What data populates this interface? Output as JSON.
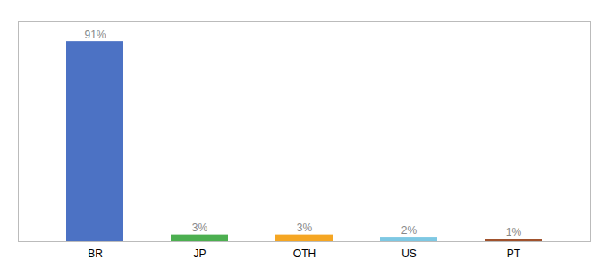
{
  "chart_data": {
    "type": "bar",
    "categories": [
      "BR",
      "JP",
      "OTH",
      "US",
      "PT"
    ],
    "values": [
      91,
      3,
      3,
      2,
      1
    ],
    "value_labels": [
      "91%",
      "3%",
      "3%",
      "2%",
      "1%"
    ],
    "colors": [
      "#4c72c4",
      "#4caf50",
      "#f5a623",
      "#7ec8e3",
      "#a0522d"
    ],
    "ylim": [
      0,
      100
    ],
    "data_labels": true,
    "tick_labels": "x",
    "grid": false
  }
}
